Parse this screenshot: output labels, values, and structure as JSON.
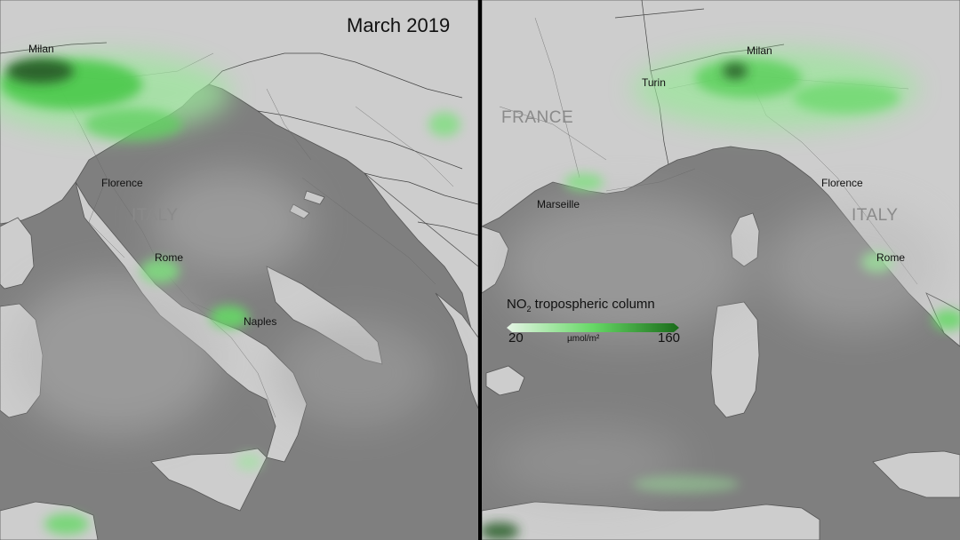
{
  "title": "March 2019",
  "left_map": {
    "cities": {
      "milan": "Milan",
      "florence": "Florence",
      "rome": "Rome",
      "naples": "Naples"
    },
    "country": "ITALY"
  },
  "right_map": {
    "cities": {
      "milan": "Milan",
      "turin": "Turin",
      "marseille": "Marseille",
      "florence": "Florence",
      "rome": "Rome"
    },
    "countries": {
      "france": "FRANCE",
      "italy": "ITALY"
    }
  },
  "legend": {
    "title_prefix": "NO",
    "title_subscript": "2",
    "title_suffix": " tropospheric column",
    "min": "20",
    "max": "160",
    "unit": "µmol/m²",
    "color_low": "#e6f5e6",
    "color_high": "#1a6b1a"
  },
  "colors": {
    "land": "#cfcfcf",
    "sea": "#7f7f7f",
    "no2_low": "#b7ecb7",
    "no2_mid": "#5fd35f",
    "no2_high": "#2e6f2e",
    "divider": "#000000"
  }
}
